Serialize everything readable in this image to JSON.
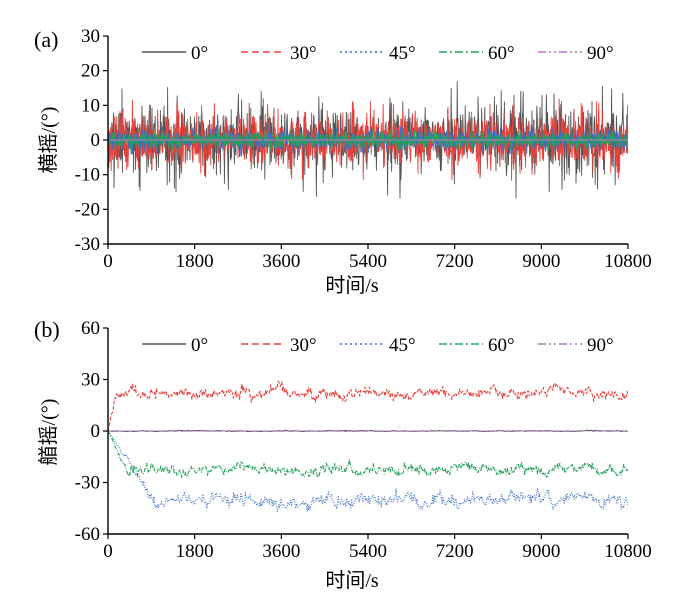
{
  "chart_data": [
    {
      "type": "line",
      "panel_label": "(a)",
      "xlabel": "时间/s",
      "ylabel": "横摇/(°)",
      "xlim": [
        0,
        10800
      ],
      "ylim": [
        -30,
        30
      ],
      "x_ticks": [
        "0",
        "1800",
        "3600",
        "5400",
        "7200",
        "9000",
        "10800"
      ],
      "y_ticks": [
        "30",
        "20",
        "10",
        "0",
        "-10",
        "-20",
        "-30"
      ],
      "legend_position": "top",
      "series": [
        {
          "name": "0°",
          "color": "#555555",
          "dash": "solid",
          "mean": 0,
          "amplitude": 6.5,
          "peak": 17
        },
        {
          "name": "30°",
          "color": "#e8413c",
          "dash": "dashed",
          "mean": 0,
          "amplitude": 5.5,
          "peak": 12
        },
        {
          "name": "45°",
          "color": "#3a6fc4",
          "dash": "dotted",
          "mean": 0,
          "amplitude": 2.0,
          "peak": 5
        },
        {
          "name": "60°",
          "color": "#27a05b",
          "dash": "dashdot",
          "mean": 0,
          "amplitude": 1.6,
          "peak": 3
        },
        {
          "name": "90°",
          "color": "#b07ac0",
          "dash": "dashdotdot",
          "mean": 0,
          "amplitude": 0.1,
          "peak": 0.2
        }
      ]
    },
    {
      "type": "line",
      "panel_label": "(b)",
      "xlabel": "时间/s",
      "ylabel": "艏摇/(°)",
      "xlim": [
        0,
        10800
      ],
      "ylim": [
        -60,
        60
      ],
      "x_ticks": [
        "0",
        "1800",
        "3600",
        "5400",
        "7200",
        "9000",
        "10800"
      ],
      "y_ticks": [
        "60",
        "30",
        "0",
        "-30",
        "-60"
      ],
      "legend_position": "top",
      "series": [
        {
          "name": "0°",
          "color": "#555555",
          "dash": "solid",
          "mean": 0,
          "amplitude": 0.3,
          "settle_time": 0
        },
        {
          "name": "30°",
          "color": "#e8413c",
          "dash": "dashed",
          "mean": 22,
          "amplitude": 4,
          "settle_time": 150
        },
        {
          "name": "45°",
          "color": "#3a6fc4",
          "dash": "dotted",
          "mean": -40,
          "amplitude": 5,
          "settle_time": 900
        },
        {
          "name": "60°",
          "color": "#27a05b",
          "dash": "dashdot",
          "mean": -22,
          "amplitude": 4,
          "settle_time": 400
        },
        {
          "name": "90°",
          "color": "#b07ac0",
          "dash": "dashdotdot",
          "mean": 0,
          "amplitude": 0.2,
          "settle_time": 0
        }
      ]
    }
  ]
}
